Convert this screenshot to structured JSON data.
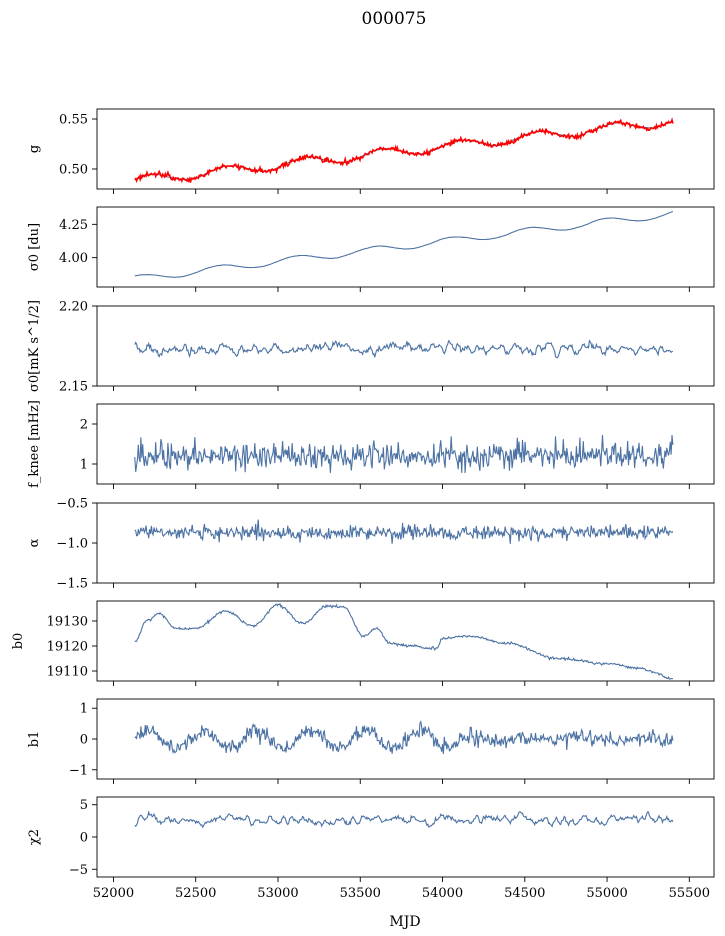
{
  "title": "000075",
  "chart_data": {
    "type": "line",
    "title": "000075",
    "xlabel": "MJD",
    "xlim": [
      51900,
      55650
    ],
    "xticks": [
      52000,
      52500,
      53000,
      53500,
      54000,
      54500,
      55000,
      55500
    ],
    "x_range": [
      52130,
      55400
    ],
    "colors": {
      "series": "#4c72a4",
      "fit": "#ff0000"
    },
    "panels": [
      {
        "ylabel": "g",
        "ylim": [
          0.48,
          0.56
        ],
        "yticks": [
          0.5,
          0.55
        ],
        "tick_labels": [
          "0.50",
          "0.55"
        ],
        "model": {
          "kind": "trend_wave",
          "base": 0.488,
          "end": 0.548,
          "amp": 0.0045,
          "period": 470,
          "phase": 0.3,
          "noise": 0.0007,
          "smooth": 3
        },
        "overlay": {
          "kind": "trend_wave",
          "base": 0.488,
          "end": 0.548,
          "amp": 0.0047,
          "period": 470,
          "phase": 0.3,
          "noise": 0.0012,
          "smooth": 1
        },
        "has_fit": true
      },
      {
        "ylabel": "σ0 [du]",
        "ylim": [
          3.78,
          4.38
        ],
        "yticks": [
          4.0,
          4.25
        ],
        "tick_labels": [
          "4.00",
          "4.25"
        ],
        "model": {
          "kind": "trend_wave",
          "base": 3.84,
          "end": 4.33,
          "amp": 0.025,
          "period": 470,
          "phase": 1.0,
          "noise": 0.004,
          "smooth": 6
        }
      },
      {
        "ylabel": "σ0[mK s^1/2]",
        "ylim": [
          2.15,
          2.2
        ],
        "yticks": [
          2.15,
          2.2
        ],
        "tick_labels": [
          "2.15",
          "2.20"
        ],
        "model": {
          "kind": "noise",
          "mean": 2.173,
          "sd": 0.0045,
          "smooth": 2
        }
      },
      {
        "ylabel": "f_knee [mHz]",
        "ylim": [
          0.5,
          2.5
        ],
        "yticks": [
          1,
          2
        ],
        "tick_labels": [
          "1",
          "2"
        ],
        "model": {
          "kind": "noise",
          "mean": 1.22,
          "sd": 0.17,
          "smooth": 1
        }
      },
      {
        "ylabel": "α",
        "ylim": [
          -1.5,
          -0.5
        ],
        "yticks": [
          -1.5,
          -1.0,
          -0.5
        ],
        "tick_labels": [
          "−1.5",
          "−1.0",
          "−0.5"
        ],
        "model": {
          "kind": "noise",
          "mean": -0.87,
          "sd": 0.045,
          "smooth": 1
        }
      },
      {
        "ylabel": "b0",
        "ylim": [
          19106,
          19138
        ],
        "yticks": [
          19110,
          19120,
          19130
        ],
        "tick_labels": [
          "19110",
          "19120",
          "19130"
        ],
        "model": {
          "kind": "keypoints",
          "noise": 0.25,
          "points": [
            [
              52130,
              19122
            ],
            [
              52200,
              19130
            ],
            [
              52280,
              19133
            ],
            [
              52380,
              19127
            ],
            [
              52500,
              19127
            ],
            [
              52680,
              19134
            ],
            [
              52850,
              19128
            ],
            [
              53000,
              19136.5
            ],
            [
              53150,
              19129
            ],
            [
              53300,
              19136
            ],
            [
              53400,
              19135.5
            ],
            [
              53520,
              19124
            ],
            [
              53600,
              19127
            ],
            [
              53680,
              19121
            ],
            [
              53800,
              19120
            ],
            [
              53960,
              19119
            ],
            [
              54000,
              19123
            ],
            [
              54150,
              19124
            ],
            [
              54400,
              19121
            ],
            [
              54700,
              19115
            ],
            [
              55000,
              19113
            ],
            [
              55200,
              19111
            ],
            [
              55320,
              19109
            ],
            [
              55360,
              19107
            ],
            [
              55400,
              19107
            ]
          ]
        }
      },
      {
        "ylabel": "b1",
        "ylim": [
          -1.3,
          1.3
        ],
        "yticks": [
          -1,
          0,
          1
        ],
        "tick_labels": [
          "−1",
          "0",
          "1"
        ],
        "model": {
          "kind": "wave_noise",
          "mean": 0.0,
          "amp": 0.28,
          "period": 330,
          "phase": 0.0,
          "damp_after": 54100,
          "sd": 0.13,
          "smooth": 1
        }
      },
      {
        "ylabel": "χ2",
        "ylim": [
          -6.2,
          6.2
        ],
        "yticks": [
          -5,
          0,
          5
        ],
        "tick_labels": [
          "−5",
          "0",
          "5"
        ],
        "model": {
          "kind": "noise",
          "mean": 2.6,
          "sd": 0.95,
          "smooth": 2
        }
      }
    ]
  }
}
